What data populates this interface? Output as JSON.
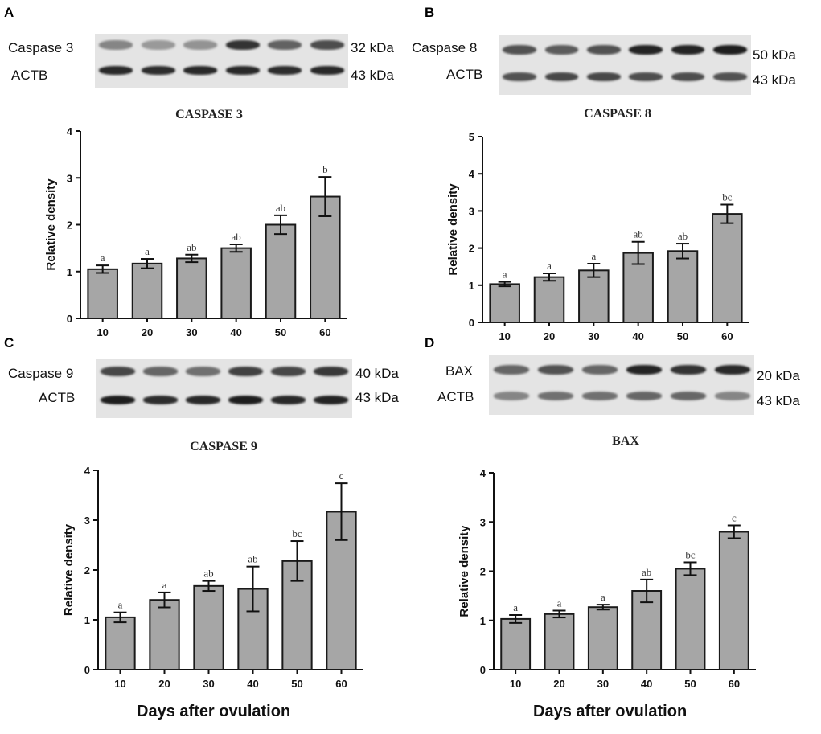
{
  "figure": {
    "x_axis_title": "Days after ovulation",
    "colors": {
      "bar_fill": "#a6a6a6",
      "bar_stroke": "#1a1a1a",
      "axis": "#111111",
      "band_dark": "#1c1c1c",
      "blot_bg": "#e4e4e4"
    }
  },
  "panels": [
    {
      "letter": "A",
      "blot": {
        "rows": [
          {
            "label": "Caspase 3",
            "kda": "32 kDa",
            "intensity": [
              0.45,
              0.35,
              0.38,
              0.85,
              0.62,
              0.72
            ]
          },
          {
            "label": "ACTB",
            "kda": "43 kDa",
            "intensity": [
              0.9,
              0.88,
              0.9,
              0.9,
              0.88,
              0.9
            ]
          }
        ]
      }
    },
    {
      "letter": "B",
      "blot": {
        "rows": [
          {
            "label": "Caspase 8",
            "kda": "50 kDa",
            "intensity": [
              0.7,
              0.65,
              0.7,
              0.92,
              0.92,
              0.95
            ]
          },
          {
            "label": "ACTB",
            "kda": "43 kDa",
            "intensity": [
              0.7,
              0.75,
              0.75,
              0.72,
              0.72,
              0.7
            ]
          }
        ]
      }
    },
    {
      "letter": "C",
      "blot": {
        "rows": [
          {
            "label": "Caspase 9",
            "kda": "40 kDa",
            "intensity": [
              0.75,
              0.6,
              0.55,
              0.78,
              0.75,
              0.82
            ]
          },
          {
            "label": "ACTB",
            "kda": "43 kDa",
            "intensity": [
              0.95,
              0.88,
              0.9,
              0.95,
              0.9,
              0.92
            ]
          }
        ]
      }
    },
    {
      "letter": "D",
      "blot": {
        "rows": [
          {
            "label": "BAX",
            "kda": "20 kDa",
            "intensity": [
              0.6,
              0.7,
              0.6,
              0.92,
              0.85,
              0.9
            ]
          },
          {
            "label": "ACTB",
            "kda": "43 kDa",
            "intensity": [
              0.45,
              0.55,
              0.55,
              0.6,
              0.6,
              0.45
            ]
          }
        ]
      }
    }
  ],
  "chart_data": [
    {
      "type": "bar",
      "title": "CASPASE 3",
      "xlabel": "Days after ovulation",
      "ylabel": "Relative density",
      "categories": [
        "10",
        "20",
        "30",
        "40",
        "50",
        "60"
      ],
      "values": [
        1.05,
        1.17,
        1.28,
        1.5,
        2.0,
        2.6
      ],
      "errors": [
        0.08,
        0.1,
        0.08,
        0.08,
        0.2,
        0.42
      ],
      "labels": [
        "a",
        "a",
        "ab",
        "ab",
        "ab",
        "b"
      ],
      "ylim": [
        0,
        4
      ],
      "yticks": [
        "0",
        "1",
        "2",
        "3",
        "4"
      ]
    },
    {
      "type": "bar",
      "title": "CASPASE 8",
      "xlabel": "Days after ovulation",
      "ylabel": "Relative density",
      "categories": [
        "10",
        "20",
        "30",
        "40",
        "50",
        "60"
      ],
      "values": [
        1.03,
        1.22,
        1.4,
        1.87,
        1.92,
        2.92
      ],
      "errors": [
        0.06,
        0.1,
        0.18,
        0.3,
        0.2,
        0.25
      ],
      "labels": [
        "a",
        "a",
        "a",
        "ab",
        "ab",
        "bc"
      ],
      "ylim": [
        0,
        5
      ],
      "yticks": [
        "0",
        "1",
        "2",
        "3",
        "4",
        "5"
      ]
    },
    {
      "type": "bar",
      "title": "CASPASE 9",
      "xlabel": "Days after ovulation",
      "ylabel": "Relative density",
      "categories": [
        "10",
        "20",
        "30",
        "40",
        "50",
        "60"
      ],
      "values": [
        1.05,
        1.4,
        1.68,
        1.62,
        2.18,
        3.17
      ],
      "errors": [
        0.1,
        0.15,
        0.1,
        0.45,
        0.4,
        0.57
      ],
      "labels": [
        "a",
        "a",
        "ab",
        "ab",
        "bc",
        "c"
      ],
      "ylim": [
        0,
        4
      ],
      "yticks": [
        "0",
        "1",
        "2",
        "3",
        "4"
      ]
    },
    {
      "type": "bar",
      "title": "BAX",
      "xlabel": "Days after ovulation",
      "ylabel": "Relative density",
      "categories": [
        "10",
        "20",
        "30",
        "40",
        "50",
        "60"
      ],
      "values": [
        1.03,
        1.13,
        1.27,
        1.6,
        2.05,
        2.8
      ],
      "errors": [
        0.08,
        0.07,
        0.05,
        0.23,
        0.13,
        0.13
      ],
      "labels": [
        "a",
        "a",
        "a",
        "ab",
        "bc",
        "c"
      ],
      "ylim": [
        0,
        4
      ],
      "yticks": [
        "0",
        "1",
        "2",
        "3",
        "4"
      ]
    }
  ]
}
